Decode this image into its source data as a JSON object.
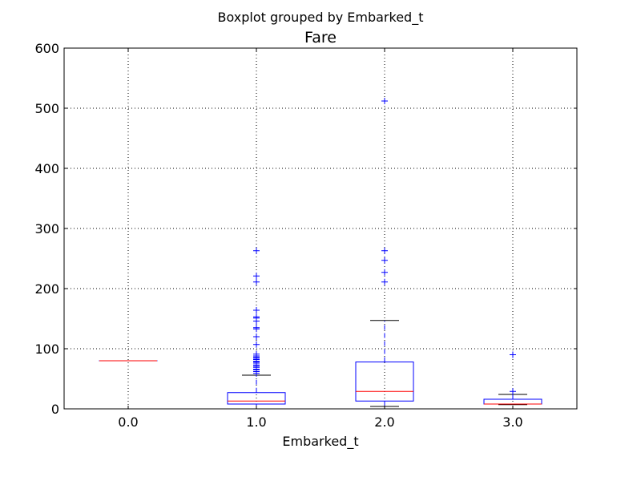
{
  "chart_data": {
    "type": "boxplot",
    "suptitle": "Boxplot grouped by Embarked_t",
    "title": "Fare",
    "xlabel": "Embarked_t",
    "ylabel": "",
    "categories": [
      "0.0",
      "1.0",
      "2.0",
      "3.0"
    ],
    "ylim": [
      0,
      600
    ],
    "yticks": [
      "0",
      "100",
      "200",
      "300",
      "400",
      "500",
      "600"
    ],
    "grid": true,
    "boxes": [
      {
        "category": "0.0",
        "whisker_low": 80,
        "q1": 80,
        "median": 80,
        "q3": 80,
        "whisker_high": 80,
        "outliers": []
      },
      {
        "category": "1.0",
        "whisker_low": 0,
        "q1": 8,
        "median": 13,
        "q3": 27,
        "whisker_high": 56,
        "outliers": [
          59,
          62,
          65,
          66,
          69,
          71,
          73,
          76,
          78,
          79,
          82,
          84,
          86,
          88,
          91,
          107,
          120,
          133,
          135,
          146,
          151,
          153,
          164,
          211,
          221,
          263
        ]
      },
      {
        "category": "2.0",
        "whisker_low": 4,
        "q1": 13,
        "median": 29,
        "q3": 78,
        "whisker_high": 147,
        "outliers": [
          211,
          227,
          247,
          263,
          512
        ]
      },
      {
        "category": "3.0",
        "whisker_low": 7,
        "q1": 8,
        "median": 8,
        "q3": 16,
        "whisker_high": 24,
        "outliers": [
          29,
          90
        ]
      }
    ],
    "colors": {
      "box": "#0000ff",
      "median": "#ff0000",
      "cap": "#000000",
      "whisker": "#0000ff",
      "flier": "#0000ff",
      "grid": "#000000"
    }
  }
}
